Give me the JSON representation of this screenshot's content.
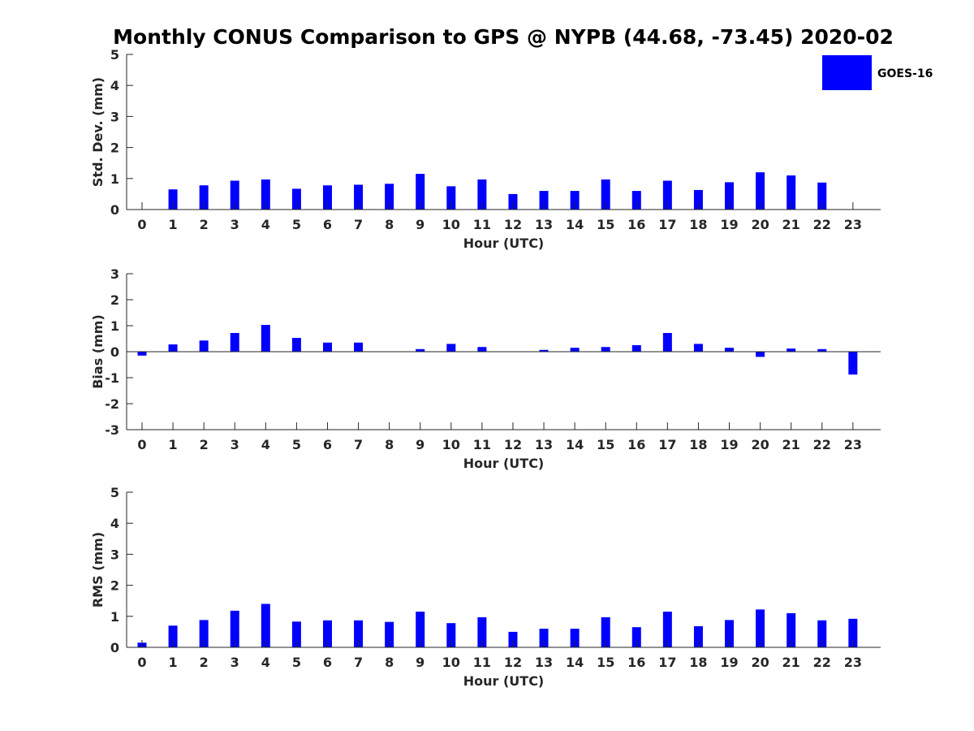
{
  "colors": {
    "bar": "#0000ff",
    "axis": "#262626",
    "background": "#ffffff"
  },
  "title": "Monthly CONUS Comparison to GPS @ NYPB (44.68, -73.45) 2020-02",
  "legend": {
    "label": "GOES-16",
    "placement": "top-right"
  },
  "chart_data": [
    {
      "type": "bar",
      "x": [
        0,
        1,
        2,
        3,
        4,
        5,
        6,
        7,
        8,
        9,
        10,
        11,
        12,
        13,
        14,
        15,
        16,
        17,
        18,
        19,
        20,
        21,
        22,
        23
      ],
      "xlabel": "Hour (UTC)",
      "ylabel": "Std. Dev. (mm)",
      "ylim": [
        0,
        5
      ],
      "yticks": [
        0,
        1,
        2,
        3,
        4,
        5
      ],
      "series": [
        {
          "name": "GOES-16",
          "values": [
            0,
            0.65,
            0.78,
            0.93,
            0.97,
            0.67,
            0.78,
            0.8,
            0.83,
            1.15,
            0.75,
            0.97,
            0.5,
            0.6,
            0.6,
            0.97,
            0.6,
            0.93,
            0.63,
            0.88,
            1.2,
            1.1,
            0.87,
            0
          ]
        }
      ]
    },
    {
      "type": "bar",
      "x": [
        0,
        1,
        2,
        3,
        4,
        5,
        6,
        7,
        8,
        9,
        10,
        11,
        12,
        13,
        14,
        15,
        16,
        17,
        18,
        19,
        20,
        21,
        22,
        23
      ],
      "xlabel": "Hour (UTC)",
      "ylabel": "Bias (mm)",
      "ylim": [
        -3,
        3
      ],
      "yticks": [
        -3,
        -2,
        -1,
        0,
        1,
        2,
        3
      ],
      "series": [
        {
          "name": "GOES-16",
          "values": [
            -0.15,
            0.28,
            0.43,
            0.72,
            1.03,
            0.53,
            0.35,
            0.35,
            0,
            0.1,
            0.3,
            0.18,
            0,
            0.07,
            0.15,
            0.18,
            0.25,
            0.72,
            0.3,
            0.15,
            -0.2,
            0.12,
            0.1,
            -0.88
          ]
        }
      ]
    },
    {
      "type": "bar",
      "x": [
        0,
        1,
        2,
        3,
        4,
        5,
        6,
        7,
        8,
        9,
        10,
        11,
        12,
        13,
        14,
        15,
        16,
        17,
        18,
        19,
        20,
        21,
        22,
        23
      ],
      "xlabel": "Hour (UTC)",
      "ylabel": "RMS (mm)",
      "ylim": [
        0,
        5
      ],
      "yticks": [
        0,
        1,
        2,
        3,
        4,
        5
      ],
      "series": [
        {
          "name": "GOES-16",
          "values": [
            0.15,
            0.7,
            0.88,
            1.18,
            1.4,
            0.83,
            0.87,
            0.87,
            0.82,
            1.15,
            0.78,
            0.97,
            0.5,
            0.6,
            0.6,
            0.97,
            0.65,
            1.15,
            0.68,
            0.88,
            1.22,
            1.1,
            0.87,
            0.92
          ]
        }
      ]
    }
  ]
}
